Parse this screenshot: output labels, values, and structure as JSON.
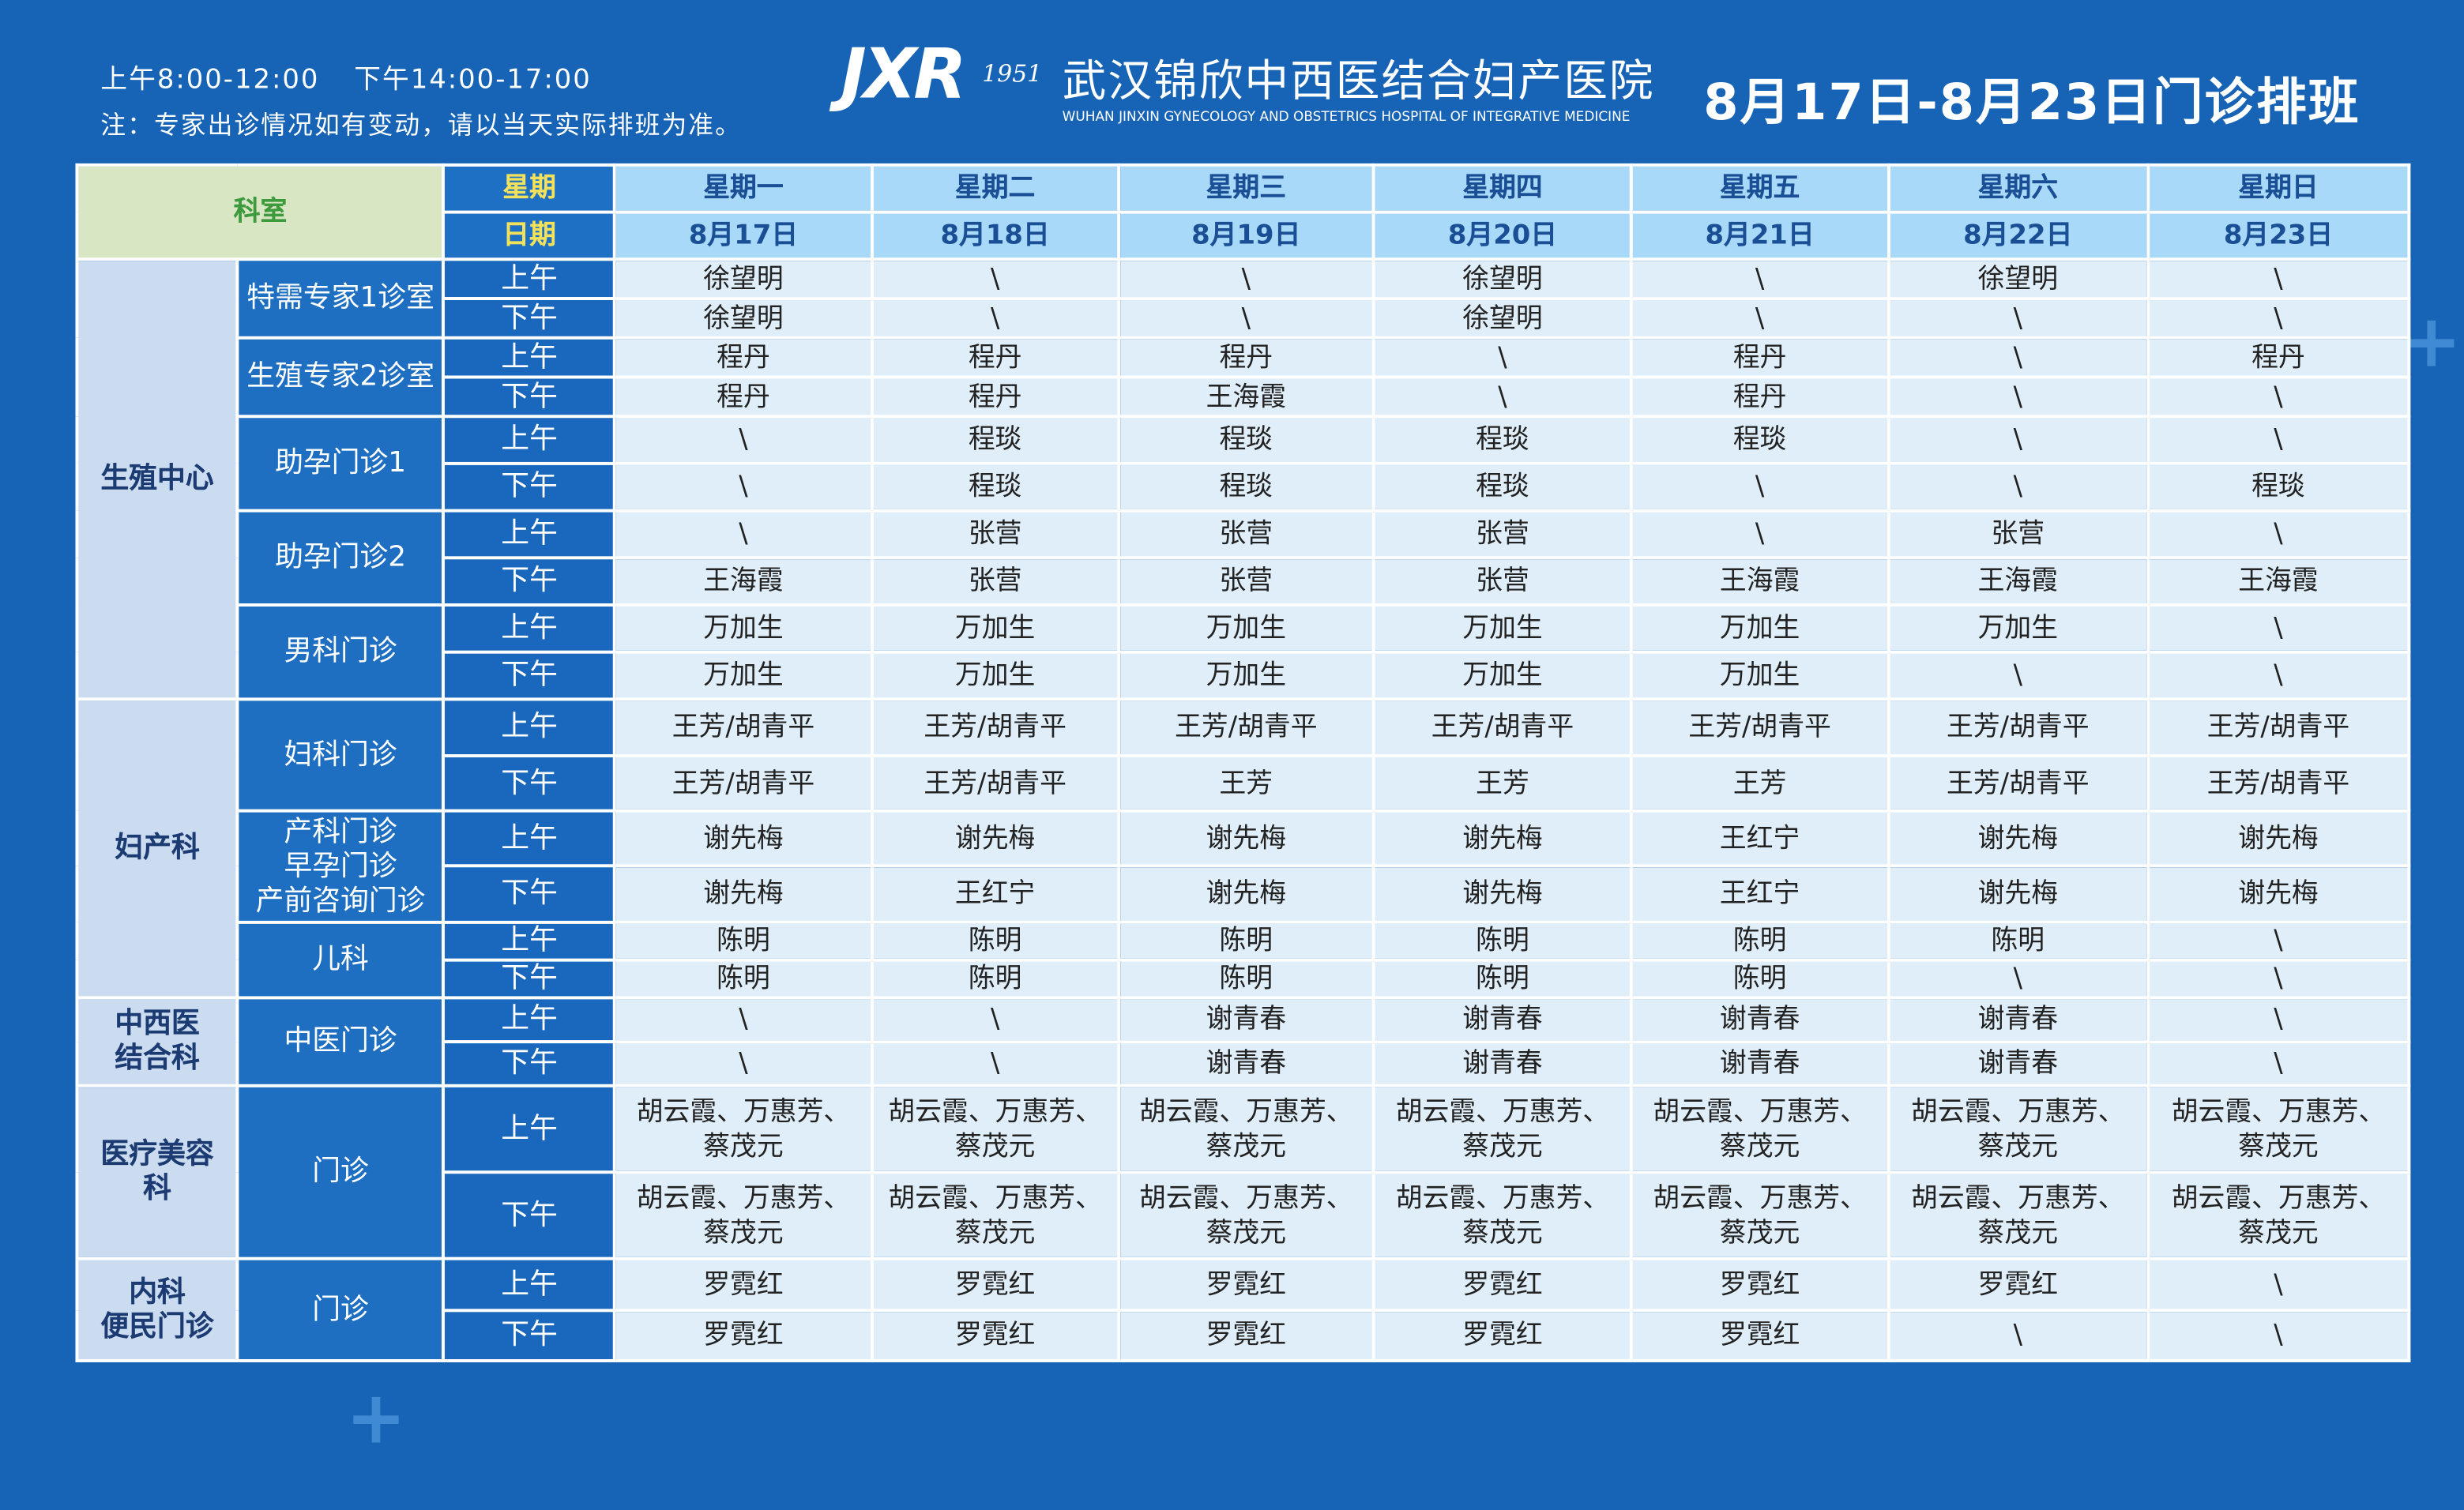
{
  "header": {
    "hours_am": "上午8:00-12:00",
    "hours_pm": "下午14:00-17:00",
    "note": "注：专家出诊情况如有变动，请以当天实际排班为准。",
    "logo": "JXR",
    "logo_year": "1951",
    "hospital_name": "武汉锦欣中西医结合妇产医院",
    "hospital_name_en": "WUHAN JINXIN GYNECOLOGY AND OBSTETRICS HOSPITAL OF INTEGRATIVE MEDICINE",
    "title": "8月17日-8月23日门诊排班"
  },
  "table": {
    "dept_header": "科室",
    "weekday_header": "星期",
    "date_header": "日期",
    "weekdays": [
      "星期一",
      "星期二",
      "星期三",
      "星期四",
      "星期五",
      "星期六",
      "星期日"
    ],
    "dates": [
      "8月17日",
      "8月18日",
      "8月19日",
      "8月20日",
      "8月21日",
      "8月22日",
      "8月23日"
    ],
    "departments": [
      {
        "name": "生殖中心",
        "clinics": [
          {
            "name": "特需专家1诊室",
            "sessions": [
              {
                "period": "上午",
                "doctors": [
                  "徐望明",
                  "\\",
                  "\\",
                  "徐望明",
                  "\\",
                  "徐望明",
                  "\\"
                ]
              },
              {
                "period": "下午",
                "doctors": [
                  "徐望明",
                  "\\",
                  "\\",
                  "徐望明",
                  "\\",
                  "\\",
                  "\\"
                ]
              }
            ]
          },
          {
            "name": "生殖专家2诊室",
            "sessions": [
              {
                "period": "上午",
                "doctors": [
                  "程丹",
                  "程丹",
                  "程丹",
                  "\\",
                  "程丹",
                  "\\",
                  "程丹"
                ]
              },
              {
                "period": "下午",
                "doctors": [
                  "程丹",
                  "程丹",
                  "王海霞",
                  "\\",
                  "程丹",
                  "\\",
                  "\\"
                ]
              }
            ]
          },
          {
            "name": "助孕门诊1",
            "sessions": [
              {
                "period": "上午",
                "doctors": [
                  "\\",
                  "程琰",
                  "程琰",
                  "程琰",
                  "程琰",
                  "\\",
                  "\\"
                ]
              },
              {
                "period": "下午",
                "doctors": [
                  "\\",
                  "程琰",
                  "程琰",
                  "程琰",
                  "\\",
                  "\\",
                  "程琰"
                ]
              }
            ]
          },
          {
            "name": "助孕门诊2",
            "sessions": [
              {
                "period": "上午",
                "doctors": [
                  "\\",
                  "张营",
                  "张营",
                  "张营",
                  "\\",
                  "张营",
                  "\\"
                ]
              },
              {
                "period": "下午",
                "doctors": [
                  "王海霞",
                  "张营",
                  "张营",
                  "张营",
                  "王海霞",
                  "王海霞",
                  "王海霞"
                ]
              }
            ]
          },
          {
            "name": "男科门诊",
            "sessions": [
              {
                "period": "上午",
                "doctors": [
                  "万加生",
                  "万加生",
                  "万加生",
                  "万加生",
                  "万加生",
                  "万加生",
                  "\\"
                ]
              },
              {
                "period": "下午",
                "doctors": [
                  "万加生",
                  "万加生",
                  "万加生",
                  "万加生",
                  "万加生",
                  "\\",
                  "\\"
                ]
              }
            ]
          }
        ]
      },
      {
        "name": "妇产科",
        "clinics": [
          {
            "name": "妇科门诊",
            "sessions": [
              {
                "period": "上午",
                "doctors": [
                  "王芳/胡青平",
                  "王芳/胡青平",
                  "王芳/胡青平",
                  "王芳/胡青平",
                  "王芳/胡青平",
                  "王芳/胡青平",
                  "王芳/胡青平"
                ]
              },
              {
                "period": "下午",
                "doctors": [
                  "王芳/胡青平",
                  "王芳/胡青平",
                  "王芳",
                  "王芳",
                  "王芳",
                  "王芳/胡青平",
                  "王芳/胡青平"
                ]
              }
            ]
          },
          {
            "name": "产科门诊\n早孕门诊\n产前咨询门诊",
            "sessions": [
              {
                "period": "上午",
                "doctors": [
                  "谢先梅",
                  "谢先梅",
                  "谢先梅",
                  "谢先梅",
                  "王红宁",
                  "谢先梅",
                  "谢先梅"
                ]
              },
              {
                "period": "下午",
                "doctors": [
                  "谢先梅",
                  "王红宁",
                  "谢先梅",
                  "谢先梅",
                  "王红宁",
                  "谢先梅",
                  "谢先梅"
                ]
              }
            ]
          },
          {
            "name": "儿科",
            "sessions": [
              {
                "period": "上午",
                "doctors": [
                  "陈明",
                  "陈明",
                  "陈明",
                  "陈明",
                  "陈明",
                  "陈明",
                  "\\"
                ]
              },
              {
                "period": "下午",
                "doctors": [
                  "陈明",
                  "陈明",
                  "陈明",
                  "陈明",
                  "陈明",
                  "\\",
                  "\\"
                ]
              }
            ]
          }
        ]
      },
      {
        "name": "中西医\n结合科",
        "clinics": [
          {
            "name": "中医门诊",
            "sessions": [
              {
                "period": "上午",
                "doctors": [
                  "\\",
                  "\\",
                  "谢青春",
                  "谢青春",
                  "谢青春",
                  "谢青春",
                  "\\"
                ]
              },
              {
                "period": "下午",
                "doctors": [
                  "\\",
                  "\\",
                  "谢青春",
                  "谢青春",
                  "谢青春",
                  "谢青春",
                  "\\"
                ]
              }
            ]
          }
        ]
      },
      {
        "name": "医疗美容\n科",
        "clinics": [
          {
            "name": "门诊",
            "sessions": [
              {
                "period": "上午",
                "doctors": [
                  "胡云霞、万惠芳、\n蔡茂元",
                  "胡云霞、万惠芳、\n蔡茂元",
                  "胡云霞、万惠芳、\n蔡茂元",
                  "胡云霞、万惠芳、\n蔡茂元",
                  "胡云霞、万惠芳、\n蔡茂元",
                  "胡云霞、万惠芳、\n蔡茂元",
                  "胡云霞、万惠芳、\n蔡茂元"
                ]
              },
              {
                "period": "下午",
                "doctors": [
                  "胡云霞、万惠芳、\n蔡茂元",
                  "胡云霞、万惠芳、\n蔡茂元",
                  "胡云霞、万惠芳、\n蔡茂元",
                  "胡云霞、万惠芳、\n蔡茂元",
                  "胡云霞、万惠芳、\n蔡茂元",
                  "胡云霞、万惠芳、\n蔡茂元",
                  "胡云霞、万惠芳、\n蔡茂元"
                ]
              }
            ]
          }
        ]
      },
      {
        "name": "内科\n便民门诊",
        "clinics": [
          {
            "name": "门诊",
            "sessions": [
              {
                "period": "上午",
                "doctors": [
                  "罗霓红",
                  "罗霓红",
                  "罗霓红",
                  "罗霓红",
                  "罗霓红",
                  "罗霓红",
                  "\\"
                ]
              },
              {
                "period": "下午",
                "doctors": [
                  "罗霓红",
                  "罗霓红",
                  "罗霓红",
                  "罗霓红",
                  "罗霓红",
                  "\\",
                  "\\"
                ]
              }
            ]
          }
        ]
      }
    ]
  }
}
